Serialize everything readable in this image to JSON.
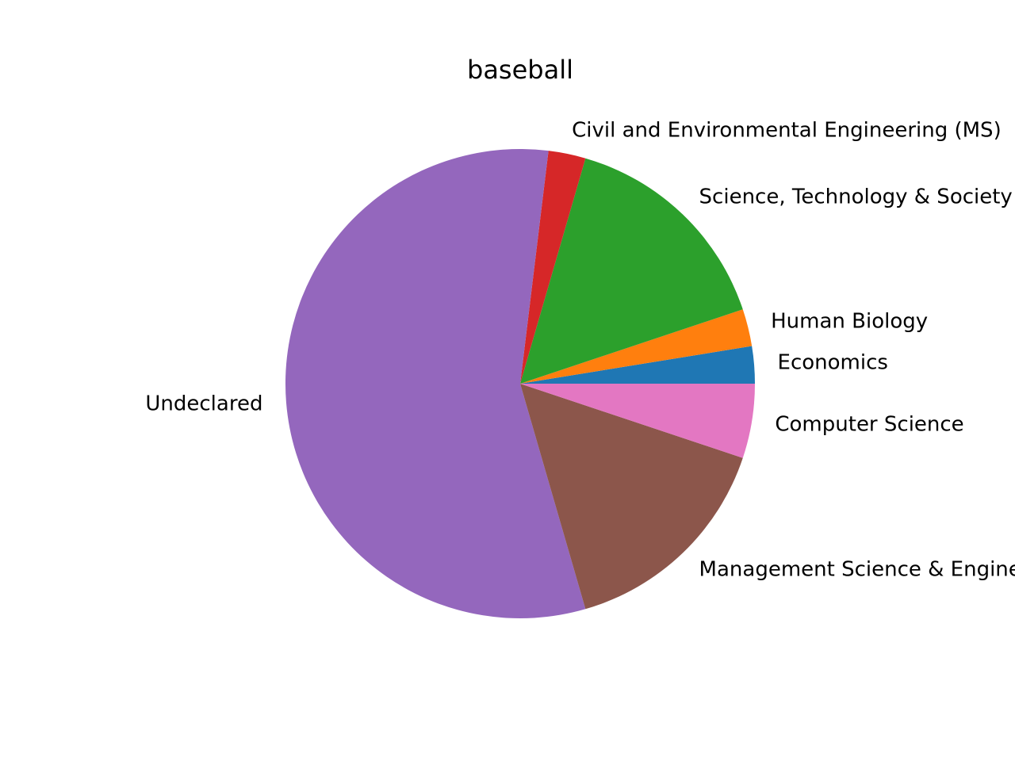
{
  "chart_data": {
    "type": "pie",
    "title": "baseball",
    "start_angle_deg": 0,
    "direction": "counterclockwise",
    "slices": [
      {
        "label": "Economics",
        "value": 1,
        "color": "#1f77b4"
      },
      {
        "label": "Human Biology",
        "value": 1,
        "color": "#ff7f0e"
      },
      {
        "label": "Science, Technology & Society",
        "value": 6,
        "color": "#2ca02c"
      },
      {
        "label": "Civil and Environmental Engineering (MS)",
        "value": 1,
        "color": "#d62728"
      },
      {
        "label": "Undeclared",
        "value": 22,
        "color": "#9467bd"
      },
      {
        "label": "Management Science & Engineering",
        "value": 6,
        "color": "#8c564b"
      },
      {
        "label": "Computer Science",
        "value": 2,
        "color": "#e377c2"
      }
    ]
  }
}
